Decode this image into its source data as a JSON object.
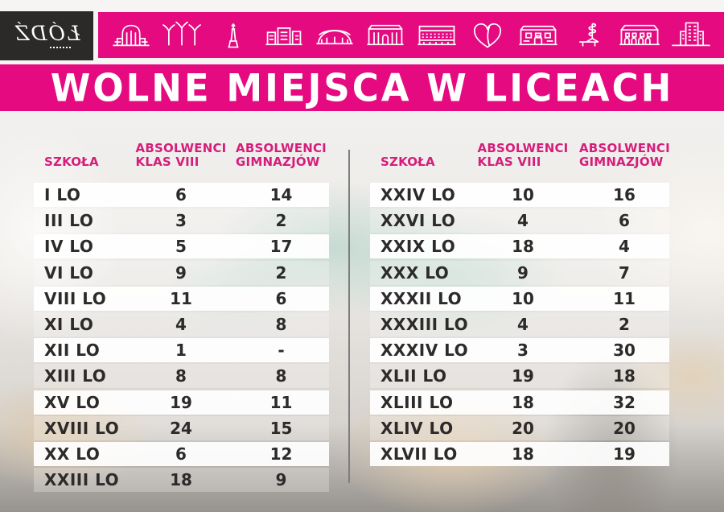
{
  "logo": {
    "city": "ŁÓDŹ"
  },
  "banner_icons": [
    "train-station-icon",
    "park-pavilions-icon",
    "monument-icon",
    "city-buildings-icon",
    "arena-icon",
    "philharmonic-icon",
    "white-factory-icon",
    "heart-leaf-icon",
    "palace-icon",
    "spiral-sculpture-icon",
    "manufaktura-icon",
    "office-tower-icon"
  ],
  "title": "WOLNE MIEJSCA W LICEACH",
  "columns": {
    "school": "SZKOŁA",
    "col1_line1": "ABSOLWENCI",
    "col1_line2": "KLAS VIII",
    "col2_line1": "ABSOLWENCI",
    "col2_line2": "GIMNAZJÓW"
  },
  "colors": {
    "pink": "#e50a80",
    "header_text_pink": "#d51e7b",
    "row_text": "#2d2b2a",
    "logo_background": "#2b2a28",
    "divider_gray": "#7c7e7f"
  },
  "tables": {
    "left": [
      {
        "school": "I LO",
        "klas_viii": "6",
        "gimnazjow": "14"
      },
      {
        "school": "III LO",
        "klas_viii": "3",
        "gimnazjow": "2"
      },
      {
        "school": "IV LO",
        "klas_viii": "5",
        "gimnazjow": "17"
      },
      {
        "school": "VI LO",
        "klas_viii": "9",
        "gimnazjow": "2"
      },
      {
        "school": "VIII LO",
        "klas_viii": "11",
        "gimnazjow": "6"
      },
      {
        "school": "XI LO",
        "klas_viii": "4",
        "gimnazjow": "8"
      },
      {
        "school": "XII LO",
        "klas_viii": "1",
        "gimnazjow": "-"
      },
      {
        "school": "XIII LO",
        "klas_viii": "8",
        "gimnazjow": "8"
      },
      {
        "school": "XV LO",
        "klas_viii": "19",
        "gimnazjow": "11"
      },
      {
        "school": "XVIII LO",
        "klas_viii": "24",
        "gimnazjow": "15"
      },
      {
        "school": "XX LO",
        "klas_viii": "6",
        "gimnazjow": "12"
      },
      {
        "school": "XXIII LO",
        "klas_viii": "18",
        "gimnazjow": "9"
      }
    ],
    "right": [
      {
        "school": "XXIV LO",
        "klas_viii": "10",
        "gimnazjow": "16"
      },
      {
        "school": "XXVI LO",
        "klas_viii": "4",
        "gimnazjow": "6"
      },
      {
        "school": "XXIX LO",
        "klas_viii": "18",
        "gimnazjow": "4"
      },
      {
        "school": "XXX LO",
        "klas_viii": "9",
        "gimnazjow": "7"
      },
      {
        "school": "XXXII LO",
        "klas_viii": "10",
        "gimnazjow": "11"
      },
      {
        "school": "XXXIII LO",
        "klas_viii": "4",
        "gimnazjow": "2"
      },
      {
        "school": "XXXIV LO",
        "klas_viii": "3",
        "gimnazjow": "30"
      },
      {
        "school": "XLII LO",
        "klas_viii": "19",
        "gimnazjow": "18"
      },
      {
        "school": "XLIII LO",
        "klas_viii": "18",
        "gimnazjow": "32"
      },
      {
        "school": "XLIV LO",
        "klas_viii": "20",
        "gimnazjow": "20"
      },
      {
        "school": "XLVII LO",
        "klas_viii": "18",
        "gimnazjow": "19"
      }
    ]
  }
}
